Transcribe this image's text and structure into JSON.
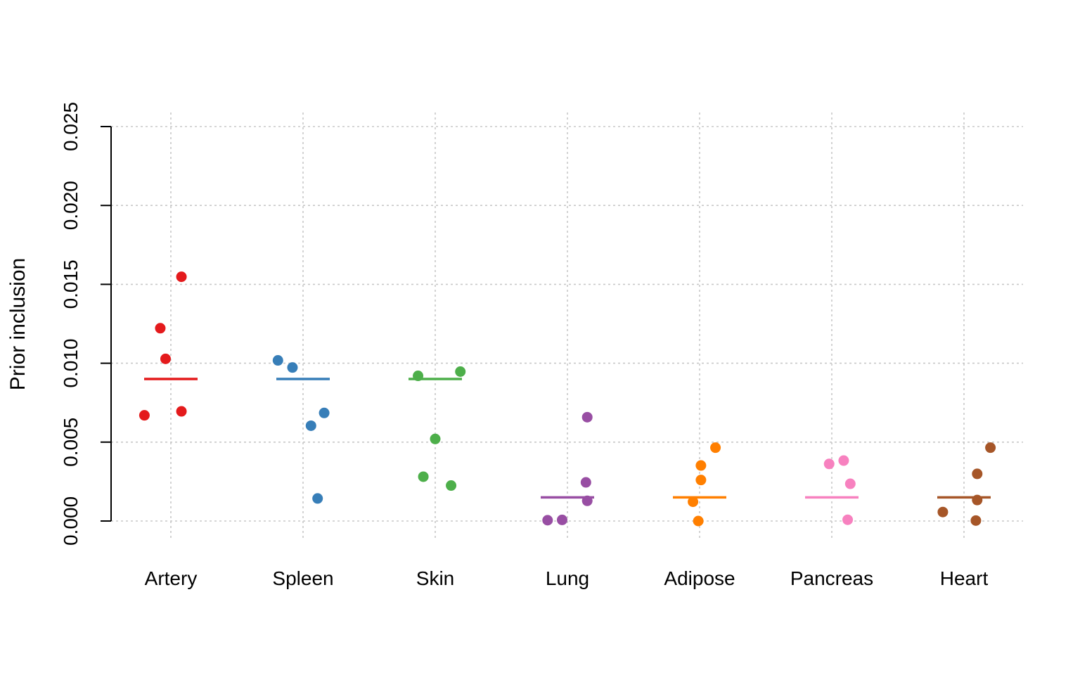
{
  "chart_data": {
    "type": "scatter",
    "ylabel": "Prior inclusion",
    "ylim": [
      0,
      0.025
    ],
    "yticks": [
      "0.000",
      "0.005",
      "0.010",
      "0.015",
      "0.020",
      "0.025"
    ],
    "ytick_values": [
      0,
      0.005,
      0.01,
      0.015,
      0.02,
      0.025
    ],
    "grid": true,
    "categories": [
      "Artery",
      "Spleen",
      "Skin",
      "Lung",
      "Adipose",
      "Pancreas",
      "Heart"
    ],
    "colors": [
      "#e41a1c",
      "#377eb8",
      "#4daf4a",
      "#984ea3",
      "#ff7f00",
      "#f781bf",
      "#a65628"
    ],
    "series": [
      {
        "category": "Artery",
        "mean": 0.009,
        "points": [
          {
            "x": -0.2,
            "y": 0.0067
          },
          {
            "x": -0.08,
            "y": 0.01222
          },
          {
            "x": -0.04,
            "y": 0.01028
          },
          {
            "x": 0.08,
            "y": 0.00695
          },
          {
            "x": 0.08,
            "y": 0.01548
          }
        ]
      },
      {
        "category": "Spleen",
        "mean": 0.009,
        "points": [
          {
            "x": -0.19,
            "y": 0.01018
          },
          {
            "x": -0.08,
            "y": 0.00973
          },
          {
            "x": 0.06,
            "y": 0.00604
          },
          {
            "x": 0.16,
            "y": 0.00685
          },
          {
            "x": 0.11,
            "y": 0.00143
          }
        ]
      },
      {
        "category": "Skin",
        "mean": 0.009,
        "points": [
          {
            "x": -0.13,
            "y": 0.0092
          },
          {
            "x": 0.19,
            "y": 0.00947
          },
          {
            "x": 0.0,
            "y": 0.0052
          },
          {
            "x": -0.09,
            "y": 0.00281
          },
          {
            "x": 0.12,
            "y": 0.00225
          }
        ]
      },
      {
        "category": "Lung",
        "mean": 0.0015,
        "points": [
          {
            "x": 0.15,
            "y": 0.00658
          },
          {
            "x": 0.14,
            "y": 0.00245
          },
          {
            "x": 0.15,
            "y": 0.00128
          },
          {
            "x": -0.15,
            "y": 5e-05
          },
          {
            "x": -0.04,
            "y": 7e-05
          }
        ]
      },
      {
        "category": "Adipose",
        "mean": 0.0015,
        "points": [
          {
            "x": 0.12,
            "y": 0.00465
          },
          {
            "x": 0.01,
            "y": 0.00352
          },
          {
            "x": 0.01,
            "y": 0.0026
          },
          {
            "x": -0.05,
            "y": 0.00122
          },
          {
            "x": -0.01,
            "y": 0.0
          }
        ]
      },
      {
        "category": "Pancreas",
        "mean": 0.0015,
        "points": [
          {
            "x": -0.02,
            "y": 0.00362
          },
          {
            "x": 0.09,
            "y": 0.00383
          },
          {
            "x": 0.14,
            "y": 0.00236
          },
          {
            "x": 0.12,
            "y": 8e-05
          }
        ]
      },
      {
        "category": "Heart",
        "mean": 0.0015,
        "points": [
          {
            "x": 0.2,
            "y": 0.00465
          },
          {
            "x": 0.1,
            "y": 0.00299
          },
          {
            "x": 0.1,
            "y": 0.00133
          },
          {
            "x": -0.16,
            "y": 0.00057
          },
          {
            "x": 0.09,
            "y": 3e-05
          }
        ]
      }
    ]
  }
}
